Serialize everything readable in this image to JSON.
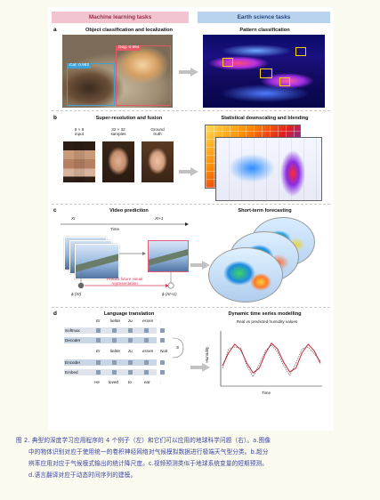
{
  "headers": {
    "ml": "Machine learning tasks",
    "es": "Earth science tasks"
  },
  "panel_a": {
    "label": "a",
    "left_title": "Object classification and localization",
    "right_title": "Pattern classification",
    "dog_box_label": "Dog: 0.994",
    "cat_box_label": "Cat: 0.982",
    "colors": {
      "dog_box": "#e35a67",
      "cat_box": "#3ba3d9"
    }
  },
  "panel_b": {
    "label": "b",
    "left_title": "Super-resolution and fusion",
    "right_title": "Statistical downscaling and blending",
    "col1": "8 × 8\ninput",
    "col2": "32 × 32\nsamples",
    "col3": "Ground\ntruth"
  },
  "panel_c": {
    "label": "c",
    "left_title": "Video prediction",
    "right_title": "Short-term forecasting",
    "x_t": "Xt",
    "x_t1": "Xt+1",
    "time_label": "Time",
    "predict_text": "Predict future visual\nrepresentation",
    "phi_xt": "ϕ (Xt)",
    "phi_xt1": "ϕ (Xt+1)"
  },
  "panel_d": {
    "label": "d",
    "left_title": "Language translation",
    "right_title": "Dynamic time series modelling",
    "chart_subtitle": "Real vs predicted humidity values",
    "rows": [
      "Softmax",
      "Decoder",
      "Encoder",
      "Embed"
    ],
    "top_words": [
      "Er",
      "liebte",
      "zu",
      "essen",
      "."
    ],
    "mid_words": [
      "Er",
      "liebte",
      "zu",
      "essen",
      "Nuit",
      "S"
    ],
    "bottom_words": [
      "He",
      "loved",
      "to",
      "eat",
      "."
    ]
  },
  "chart_data": {
    "type": "line",
    "title": "Real vs predicted humidity values",
    "xlabel": "Time",
    "ylabel": "Humidity",
    "series": [
      {
        "values": [
          0.35,
          0.62,
          0.8,
          0.68,
          0.4,
          0.2,
          0.3,
          0.6,
          0.82,
          0.7,
          0.42,
          0.22,
          0.3,
          0.62,
          0.8,
          0.66,
          0.4
        ]
      },
      {
        "values": [
          0.3,
          0.7,
          0.74,
          0.72,
          0.35,
          0.12,
          0.38,
          0.66,
          0.78,
          0.64,
          0.35,
          0.15,
          0.4,
          0.7,
          0.74,
          0.6,
          0.45
        ]
      }
    ],
    "colors": [
      "#c7233a",
      "#444444"
    ],
    "grid": false
  },
  "caption": {
    "line1": "图 2. 典型的深度学习应用程序的 4 个例子（左）和它们可以应用的地球科学问题（右）。a.图像",
    "line2": "中的物体识别对应于使用统一的卷积神经网络对气候模拟数据进行极端天气型分类。b.超分",
    "line3": "辨率应用对应于气候模式输出的统计降尺度。c.视频预测类似于地球系统变量的短期预测。",
    "line4": "d.语言翻译对应于动态时间序列的建模。"
  }
}
